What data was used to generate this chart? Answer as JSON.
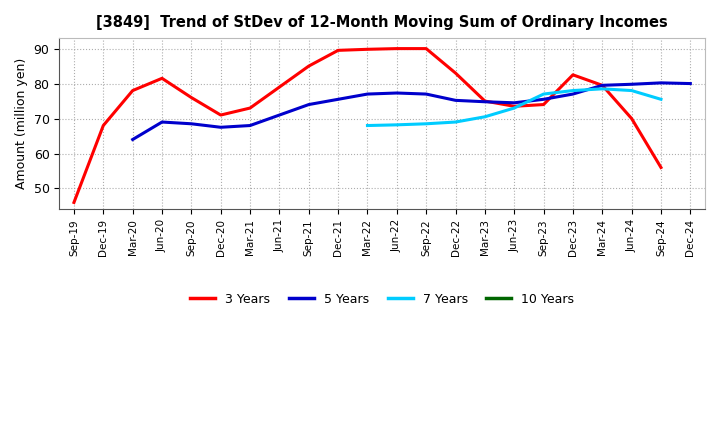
{
  "title": "[3849]  Trend of StDev of 12-Month Moving Sum of Ordinary Incomes",
  "ylabel": "Amount (million yen)",
  "ylim": [
    44,
    93
  ],
  "yticks": [
    50,
    60,
    70,
    80,
    90
  ],
  "background_color": "#ffffff",
  "grid_color": "#999999",
  "x_labels": [
    "Sep-19",
    "Dec-19",
    "Mar-20",
    "Jun-20",
    "Sep-20",
    "Dec-20",
    "Mar-21",
    "Jun-21",
    "Sep-21",
    "Dec-21",
    "Mar-22",
    "Jun-22",
    "Sep-22",
    "Dec-22",
    "Mar-23",
    "Jun-23",
    "Sep-23",
    "Dec-23",
    "Mar-24",
    "Jun-24",
    "Sep-24",
    "Dec-24"
  ],
  "series_3yr": {
    "label": "3 Years",
    "color": "#ff0000",
    "x": [
      0,
      1,
      2,
      3,
      4,
      5,
      6,
      7,
      8,
      9,
      10,
      11,
      12,
      13,
      14,
      15,
      16,
      17,
      18,
      19,
      20
    ],
    "y": [
      46,
      68,
      78,
      81.5,
      76,
      71,
      73,
      79,
      85,
      89.5,
      89.8,
      90,
      90,
      83,
      75,
      73.5,
      74,
      82.5,
      79.5,
      70,
      56
    ]
  },
  "series_5yr": {
    "label": "5 Years",
    "color": "#0000cc",
    "x": [
      2,
      3,
      4,
      5,
      6,
      7,
      8,
      9,
      10,
      11,
      12,
      13,
      14,
      15,
      16,
      17,
      18,
      19,
      20,
      21
    ],
    "y": [
      64,
      69,
      68.5,
      67.5,
      68,
      71,
      74,
      75.5,
      77,
      77.3,
      77,
      75.2,
      74.8,
      74.5,
      75.5,
      77,
      79.5,
      79.8,
      80.2,
      80
    ]
  },
  "series_7yr": {
    "label": "7 Years",
    "color": "#00ccff",
    "x": [
      10,
      11,
      12,
      13,
      14,
      15,
      16,
      17,
      18,
      19,
      20
    ],
    "y": [
      68,
      68.2,
      68.5,
      69,
      70.5,
      73,
      77,
      78,
      78.5,
      78,
      75.5
    ]
  },
  "series_10yr": {
    "label": "10 Years",
    "color": "#006600",
    "x": [],
    "y": []
  },
  "legend_items": [
    "3 Years",
    "5 Years",
    "7 Years",
    "10 Years"
  ],
  "legend_colors": [
    "#ff0000",
    "#0000cc",
    "#00ccff",
    "#006600"
  ]
}
